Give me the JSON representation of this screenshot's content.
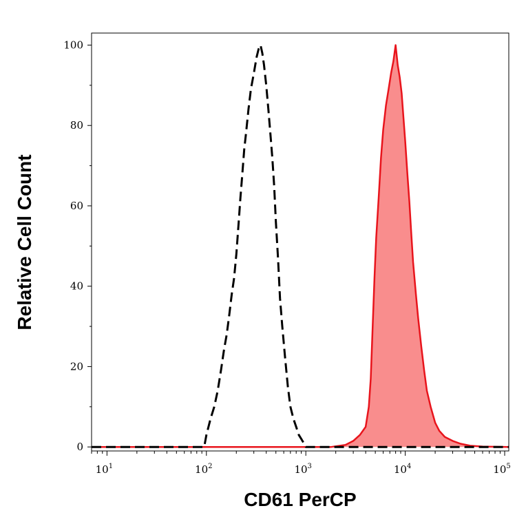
{
  "chart_data": {
    "type": "area",
    "xlabel": "CD61 PerCP",
    "ylabel": "Relative Cell Count",
    "x_scale": "log",
    "xlim": [
      7,
      110000
    ],
    "ylim": [
      -1,
      103
    ],
    "x_ticks": [
      {
        "base": "10",
        "exp": "1",
        "value": 10
      },
      {
        "base": "10",
        "exp": "2",
        "value": 100
      },
      {
        "base": "10",
        "exp": "3",
        "value": 1000
      },
      {
        "base": "10",
        "exp": "4",
        "value": 10000
      },
      {
        "base": "10",
        "exp": "5",
        "value": 100000
      }
    ],
    "y_ticks": [
      {
        "label": "0",
        "value": 0
      },
      {
        "label": "20",
        "value": 20
      },
      {
        "label": "40",
        "value": 40
      },
      {
        "label": "60",
        "value": 60
      },
      {
        "label": "80",
        "value": 80
      },
      {
        "label": "100",
        "value": 100
      }
    ],
    "grid": false,
    "series": [
      {
        "style": "dashed",
        "color": "#000000",
        "fill": "none",
        "points": [
          [
            7,
            0
          ],
          [
            95,
            0
          ],
          [
            100,
            3
          ],
          [
            110,
            7
          ],
          [
            120,
            10
          ],
          [
            130,
            14
          ],
          [
            140,
            19
          ],
          [
            150,
            24
          ],
          [
            160,
            28
          ],
          [
            170,
            33
          ],
          [
            180,
            38
          ],
          [
            190,
            42
          ],
          [
            200,
            48
          ],
          [
            210,
            55
          ],
          [
            220,
            62
          ],
          [
            230,
            68
          ],
          [
            240,
            74
          ],
          [
            250,
            78
          ],
          [
            265,
            84
          ],
          [
            280,
            89
          ],
          [
            300,
            93
          ],
          [
            320,
            97
          ],
          [
            335,
            99
          ],
          [
            350,
            100
          ],
          [
            365,
            98
          ],
          [
            380,
            95
          ],
          [
            400,
            90
          ],
          [
            420,
            84
          ],
          [
            440,
            78
          ],
          [
            460,
            72
          ],
          [
            480,
            65
          ],
          [
            500,
            56
          ],
          [
            525,
            47
          ],
          [
            550,
            37
          ],
          [
            580,
            30
          ],
          [
            620,
            22
          ],
          [
            660,
            15
          ],
          [
            700,
            10
          ],
          [
            750,
            7
          ],
          [
            800,
            5
          ],
          [
            850,
            3
          ],
          [
            900,
            2
          ],
          [
            950,
            1
          ],
          [
            1000,
            0
          ],
          [
            110000,
            0
          ]
        ]
      },
      {
        "style": "solid",
        "color": "#e8141c",
        "fill": "#f98d8d",
        "points": [
          [
            7,
            0
          ],
          [
            1800,
            0
          ],
          [
            2500,
            0.5
          ],
          [
            3000,
            1.5
          ],
          [
            3500,
            3
          ],
          [
            4000,
            5
          ],
          [
            4300,
            10
          ],
          [
            4500,
            17
          ],
          [
            4700,
            30
          ],
          [
            4900,
            42
          ],
          [
            5100,
            52
          ],
          [
            5400,
            62
          ],
          [
            5700,
            72
          ],
          [
            6000,
            79
          ],
          [
            6400,
            85
          ],
          [
            6800,
            89
          ],
          [
            7200,
            93
          ],
          [
            7600,
            96
          ],
          [
            8000,
            100
          ],
          [
            8400,
            95
          ],
          [
            8800,
            92
          ],
          [
            9200,
            88
          ],
          [
            9600,
            82
          ],
          [
            10000,
            76
          ],
          [
            10500,
            68
          ],
          [
            11000,
            61
          ],
          [
            11500,
            53
          ],
          [
            12000,
            46
          ],
          [
            12800,
            38
          ],
          [
            13500,
            32
          ],
          [
            14500,
            25
          ],
          [
            15500,
            19
          ],
          [
            16500,
            14
          ],
          [
            18000,
            10
          ],
          [
            20000,
            6
          ],
          [
            22000,
            4
          ],
          [
            25000,
            2.5
          ],
          [
            30000,
            1.5
          ],
          [
            36000,
            0.8
          ],
          [
            45000,
            0.3
          ],
          [
            60000,
            0.1
          ],
          [
            110000,
            0
          ]
        ]
      }
    ]
  }
}
